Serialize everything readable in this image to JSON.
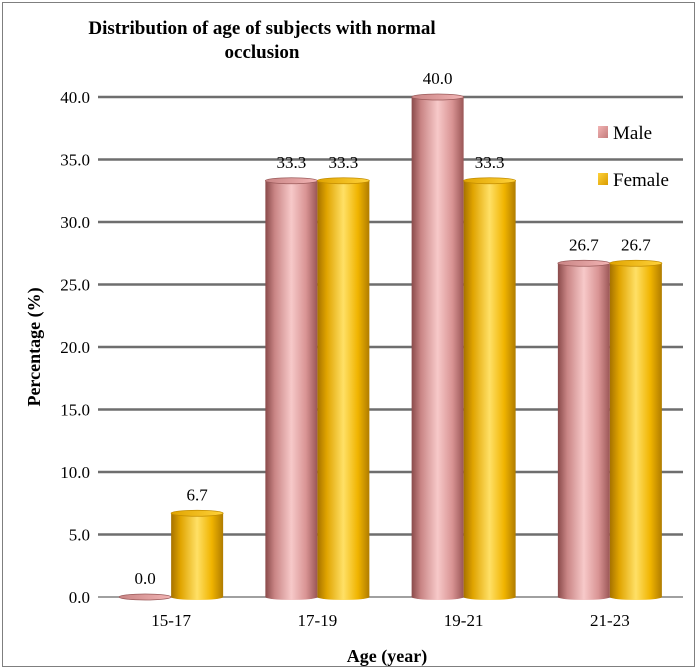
{
  "chart_data": {
    "type": "bar",
    "title": "Distribution of age of subjects with normal occlusion",
    "title_lines": [
      "Distribution of age of subjects with normal",
      "occlusion"
    ],
    "xlabel": "Age (year)",
    "ylabel": "Percentage (%)",
    "categories": [
      "15-17",
      "17-19",
      "19-21",
      "21-23"
    ],
    "series": [
      {
        "name": "Male",
        "values": [
          0.0,
          33.3,
          40.0,
          26.7
        ],
        "labels": [
          "0.0",
          "33.3",
          "40.0",
          "26.7"
        ],
        "color": "#e8a2a2"
      },
      {
        "name": "Female",
        "values": [
          6.7,
          33.3,
          33.3,
          26.7
        ],
        "labels": [
          "6.7",
          "33.3",
          "33.3",
          "26.7"
        ],
        "color": "#f5b800"
      }
    ],
    "ylim": [
      0,
      40
    ],
    "yticks": [
      "0.0",
      "5.0",
      "10.0",
      "15.0",
      "20.0",
      "25.0",
      "30.0",
      "35.0",
      "40.0"
    ],
    "grid": true,
    "legend_position": "top-right",
    "bar_style": "cylinder"
  }
}
